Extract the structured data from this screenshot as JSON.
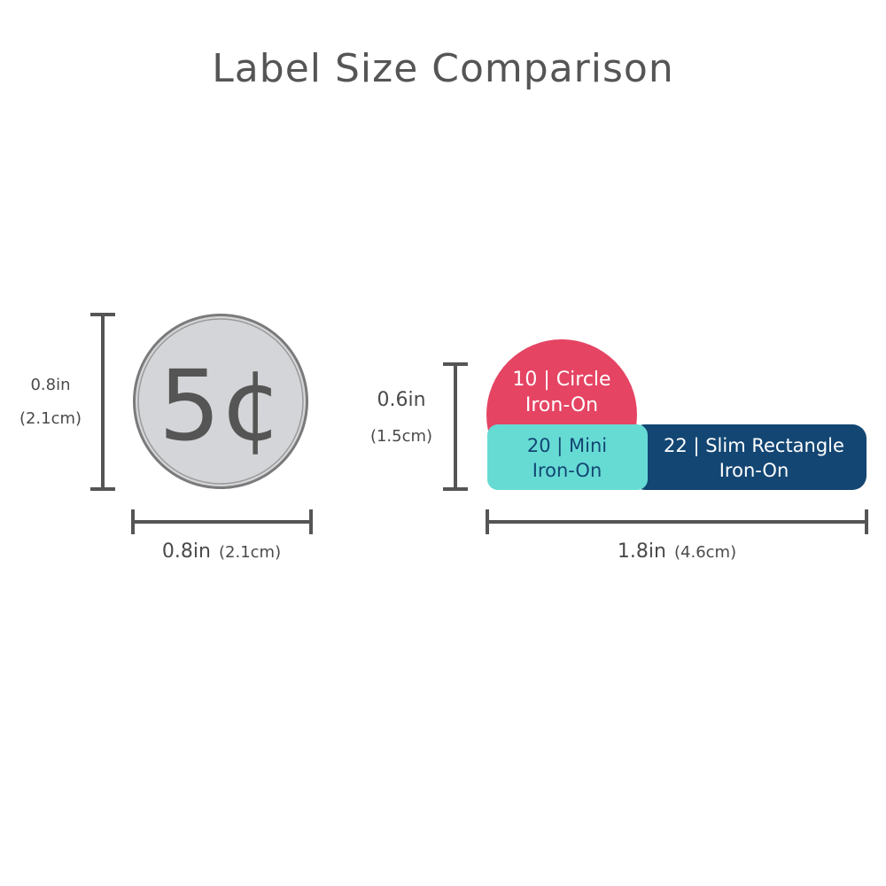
{
  "title": "Label Size Comparison",
  "coin": {
    "label": "5¢",
    "height_in": "0.8in",
    "height_cm": "(2.1cm)",
    "width_in": "0.8in",
    "width_cm": "(2.1cm)"
  },
  "labels": {
    "height_in": "0.6in",
    "height_cm": "(1.5cm)",
    "width_in": "1.8in",
    "width_cm": "(4.6cm)",
    "circle": {
      "line1": "10 | Circle",
      "line2": "Iron-On"
    },
    "mini": {
      "line1": "20 | Mini",
      "line2": "Iron-On"
    },
    "slim": {
      "line1": "22 | Slim Rectangle",
      "line2": "Iron-On"
    }
  },
  "colors": {
    "circle": "#e54463",
    "mini": "#66dbd4",
    "slim": "#134673",
    "coin_fill": "#d4d5d8",
    "coin_ring": "#7a7a7a",
    "dimension_lines": "#555555"
  }
}
